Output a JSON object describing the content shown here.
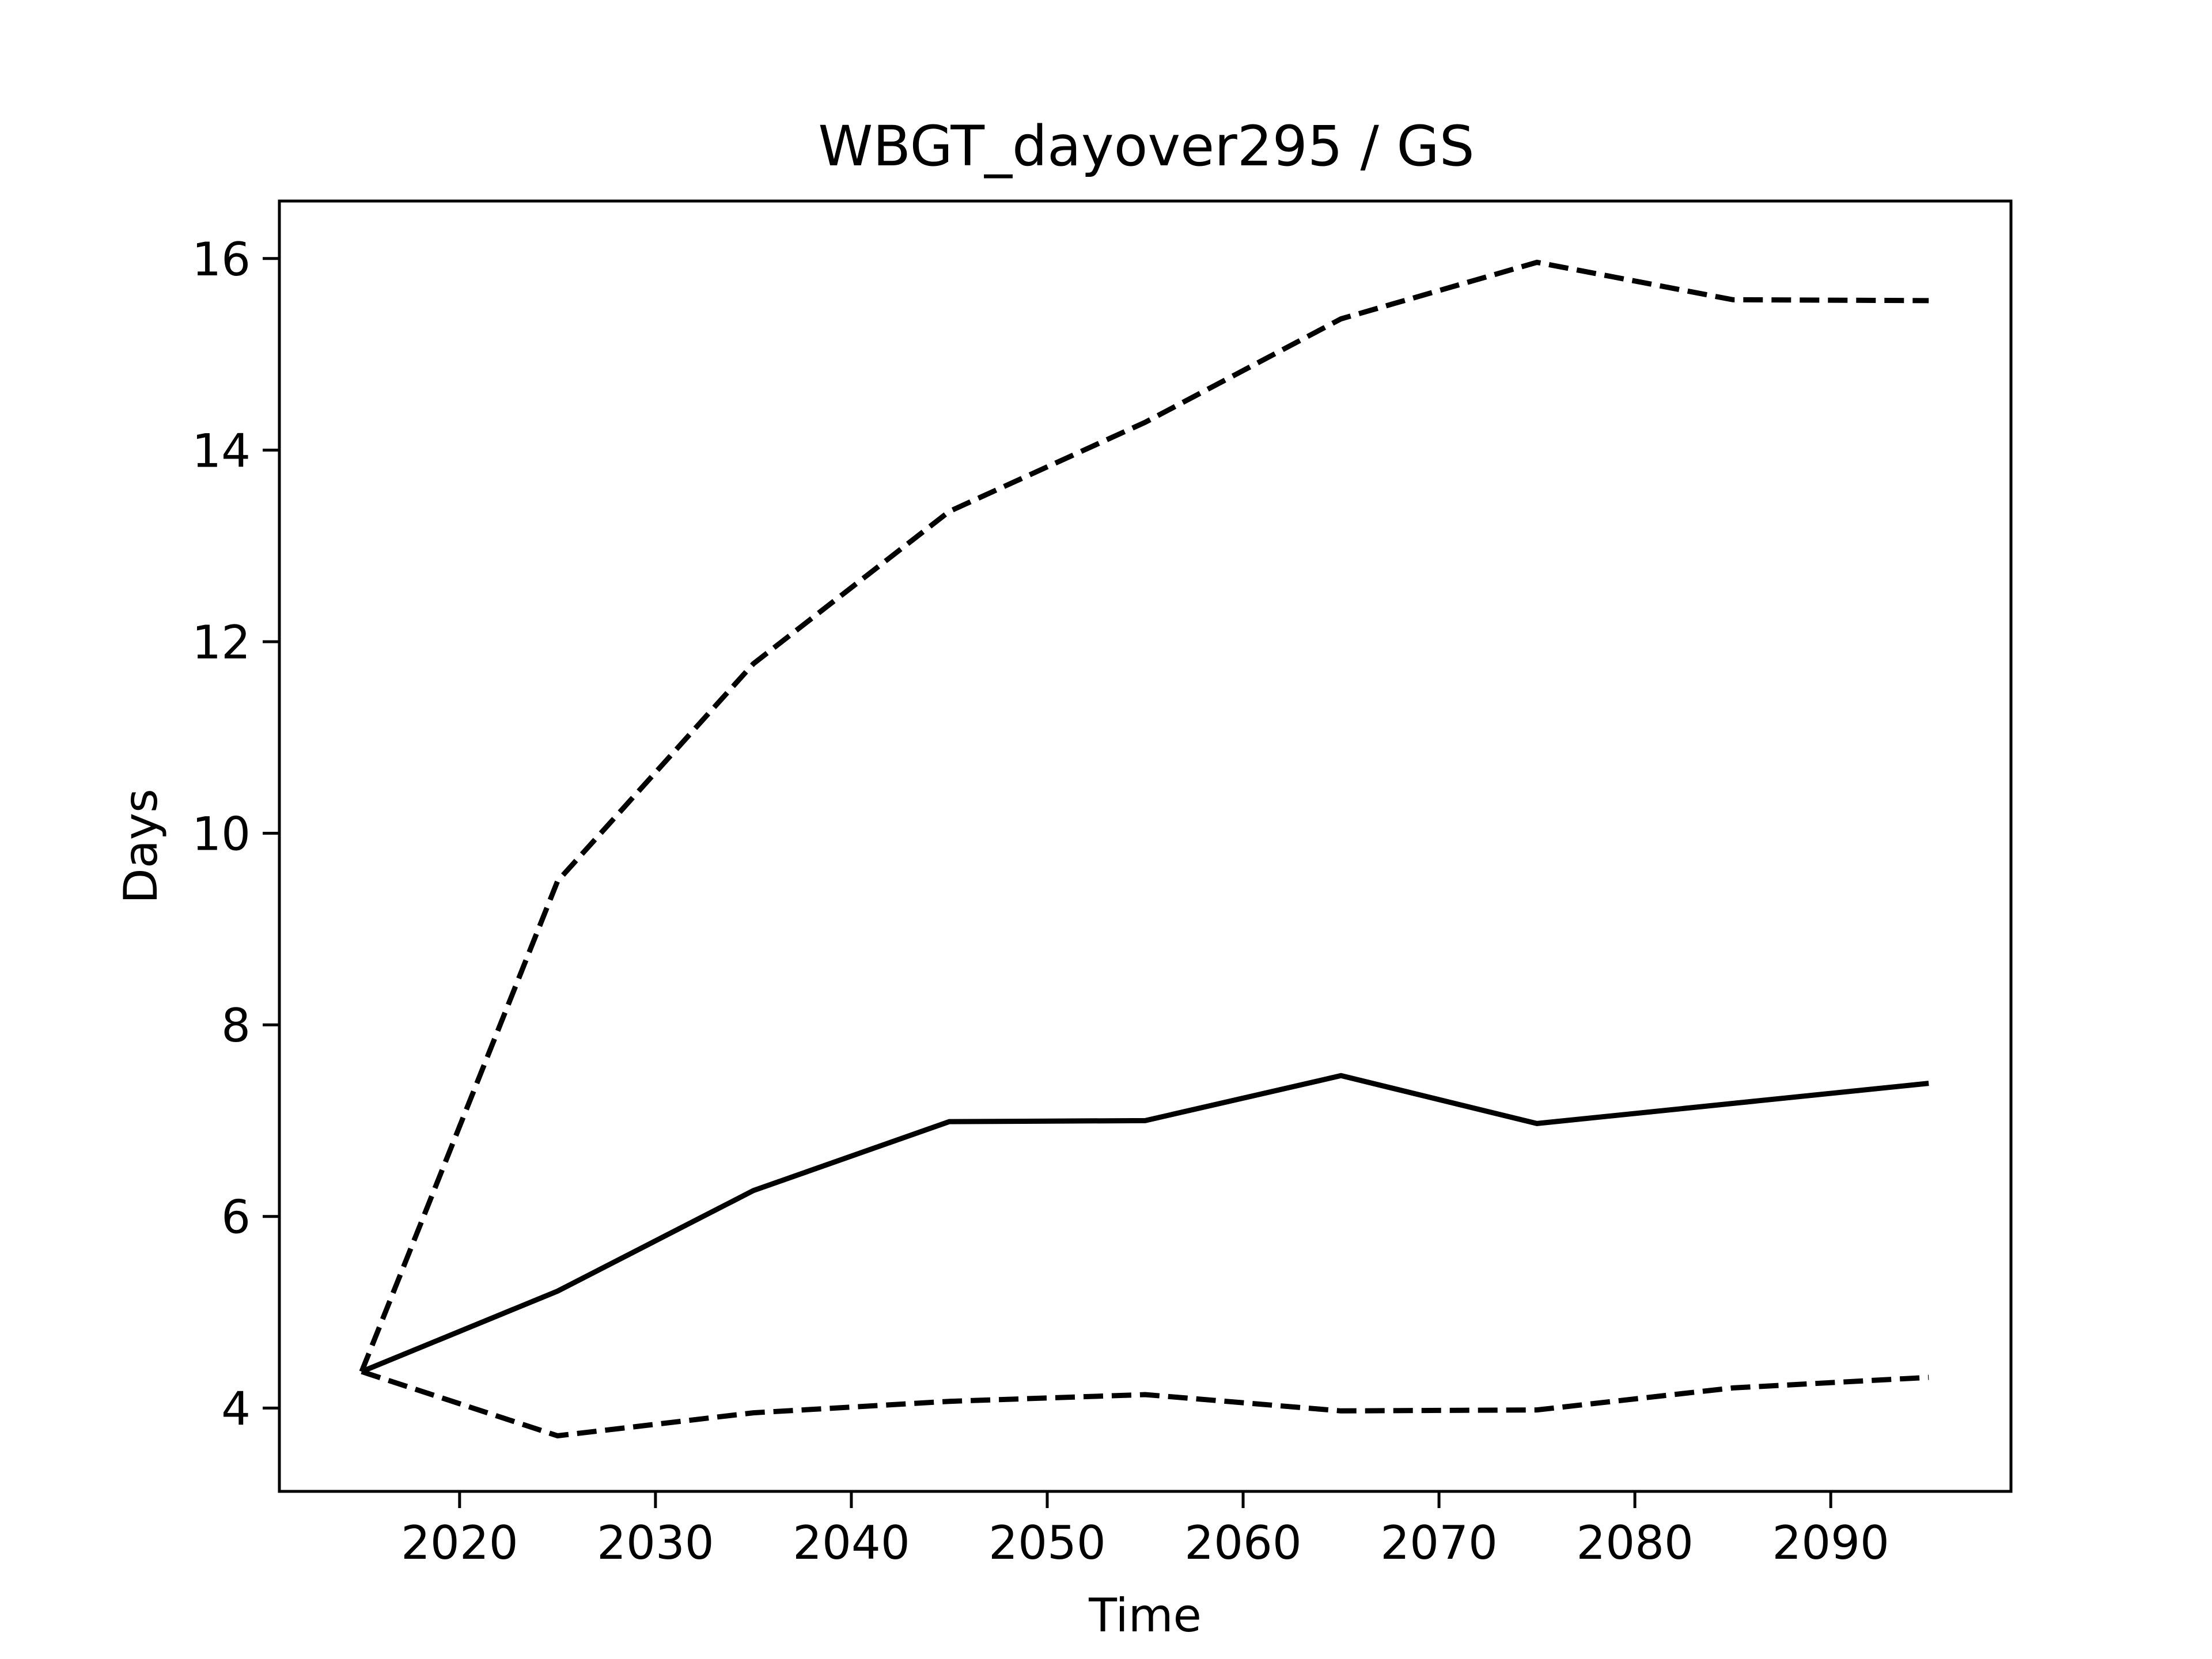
{
  "chart_data": {
    "type": "line",
    "title": "WBGT_dayover295 / GS",
    "xlabel": "Time",
    "ylabel": "Days",
    "xlim": [
      2010.8,
      2099.2
    ],
    "ylim": [
      3.13,
      16.6
    ],
    "xticks": [
      2020,
      2030,
      2040,
      2050,
      2060,
      2070,
      2080,
      2090
    ],
    "yticks": [
      4,
      6,
      8,
      10,
      12,
      14,
      16
    ],
    "grid": false,
    "legend": "none",
    "x": [
      2015,
      2025,
      2035,
      2045,
      2055,
      2065,
      2075,
      2085,
      2095
    ],
    "series": [
      {
        "style": "solid",
        "color": "#000000",
        "values": [
          4.38,
          5.22,
          6.27,
          6.99,
          7.0,
          7.47,
          6.97,
          7.18,
          7.39
        ]
      },
      {
        "style": "dashed",
        "color": "#000000",
        "values": [
          4.38,
          9.5,
          11.77,
          13.36,
          14.29,
          15.37,
          15.96,
          15.57,
          15.56
        ]
      },
      {
        "style": "dashed",
        "color": "#000000",
        "values": [
          4.38,
          3.71,
          3.95,
          4.07,
          4.14,
          3.97,
          3.98,
          4.21,
          4.32
        ]
      }
    ]
  }
}
